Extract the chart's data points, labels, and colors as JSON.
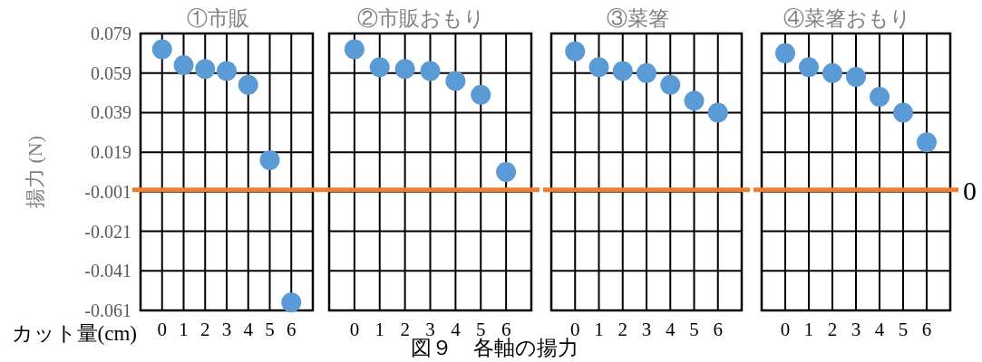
{
  "chart_data": [
    {
      "type": "scatter",
      "title": "①市販",
      "xlabel": "カット量(cm)",
      "ylabel": "揚力 (N)",
      "categories": [
        "0",
        "1",
        "2",
        "3",
        "4",
        "5",
        "6"
      ],
      "series": [
        {
          "color": "#5b9bd5",
          "values": [
            0.071,
            0.063,
            0.061,
            0.06,
            0.053,
            0.015,
            -0.057
          ]
        }
      ],
      "ylim": [
        -0.061,
        0.079
      ],
      "yticks": [
        -0.061,
        -0.041,
        -0.021,
        -0.001,
        0.019,
        0.039,
        0.059,
        0.079
      ],
      "grid": true,
      "marker": "circle",
      "ref_lines": [
        {
          "axis": "y",
          "value": 0,
          "color": "#ed7d31"
        }
      ]
    },
    {
      "type": "scatter",
      "title": "②市販おもり",
      "categories": [
        "0",
        "1",
        "2",
        "3",
        "4",
        "5",
        "6"
      ],
      "series": [
        {
          "color": "#5b9bd5",
          "values": [
            0.071,
            0.062,
            0.061,
            0.06,
            0.055,
            0.048,
            0.009
          ]
        }
      ],
      "ylim": [
        -0.061,
        0.079
      ],
      "yticks": [
        -0.061,
        -0.041,
        -0.021,
        -0.001,
        0.019,
        0.039,
        0.059,
        0.079
      ],
      "grid": true,
      "marker": "circle",
      "tick_labels": "x",
      "ref_lines": [
        {
          "axis": "y",
          "value": 0,
          "color": "#ed7d31"
        }
      ],
      "annotations": [
        "図９　各軸の揚力"
      ]
    },
    {
      "type": "scatter",
      "title": "③菜箸",
      "categories": [
        "0",
        "1",
        "2",
        "3",
        "4",
        "5",
        "6"
      ],
      "series": [
        {
          "color": "#5b9bd5",
          "values": [
            0.07,
            0.062,
            0.06,
            0.059,
            0.053,
            0.045,
            0.039
          ]
        }
      ],
      "ylim": [
        -0.061,
        0.079
      ],
      "yticks": [
        -0.061,
        -0.041,
        -0.021,
        -0.001,
        0.019,
        0.039,
        0.059,
        0.079
      ],
      "grid": true,
      "marker": "circle",
      "tick_labels": "x",
      "ref_lines": [
        {
          "axis": "y",
          "value": 0,
          "color": "#ed7d31"
        }
      ]
    },
    {
      "type": "scatter",
      "title": "④菜箸おもり",
      "categories": [
        "0",
        "1",
        "2",
        "3",
        "4",
        "5",
        "6"
      ],
      "series": [
        {
          "color": "#5b9bd5",
          "values": [
            0.069,
            0.062,
            0.059,
            0.057,
            0.047,
            0.039,
            0.024
          ]
        }
      ],
      "ylim": [
        -0.061,
        0.079
      ],
      "yticks": [
        -0.061,
        -0.041,
        -0.021,
        -0.001,
        0.019,
        0.039,
        0.059,
        0.079
      ],
      "grid": true,
      "marker": "circle",
      "tick_labels": "x",
      "ref_lines": [
        {
          "axis": "y",
          "value": 0,
          "color": "#ed7d31",
          "label": "0"
        }
      ]
    }
  ]
}
